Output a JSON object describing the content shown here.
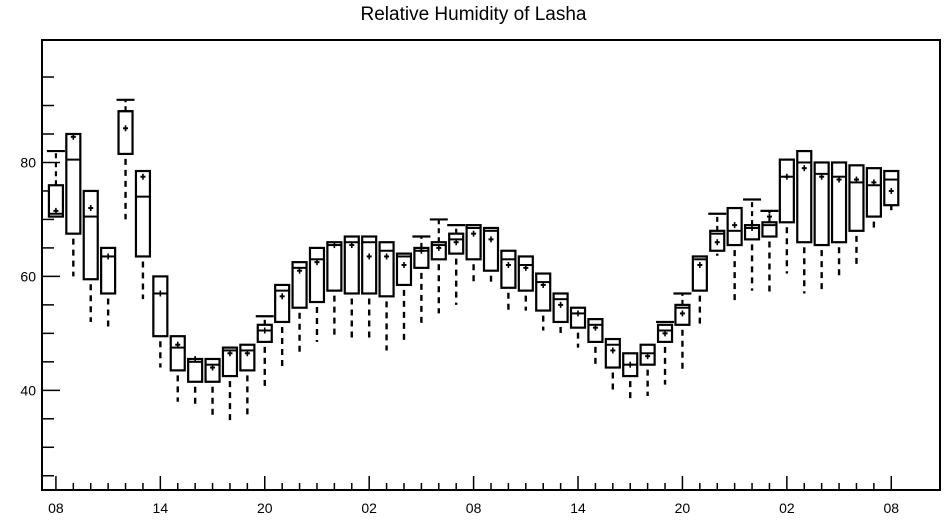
{
  "chart_data": {
    "type": "box",
    "title": "Relative Humidity of Lasha",
    "xlabel": "",
    "ylabel": "",
    "ylim": [
      22.5,
      101.5
    ],
    "yticks": [
      40,
      60,
      80
    ],
    "yticks_minor": [
      25,
      30,
      35,
      45,
      50,
      55,
      65,
      70,
      75,
      85,
      90,
      95
    ],
    "xlim": [
      -0.8,
      50.8
    ],
    "xticks": [
      {
        "x": 0,
        "label": "08"
      },
      {
        "x": 6,
        "label": "14"
      },
      {
        "x": 12,
        "label": "20"
      },
      {
        "x": 18,
        "label": "02"
      },
      {
        "x": 24,
        "label": "08"
      },
      {
        "x": 30,
        "label": "14"
      },
      {
        "x": 36,
        "label": "20"
      },
      {
        "x": 42,
        "label": "02"
      },
      {
        "x": 48,
        "label": "08"
      }
    ],
    "series": [
      {
        "values": [
          {
            "x": 0,
            "q1": 70.5,
            "median": 71,
            "q3": 76,
            "mean": 71.5,
            "whisker_low": null,
            "whisker_high": 82
          },
          {
            "x": 1,
            "q1": 67.5,
            "median": 80.5,
            "q3": 85,
            "mean": 84.5,
            "whisker_low": 60,
            "whisker_high": null
          },
          {
            "x": 2,
            "q1": 59.5,
            "median": 70.5,
            "q3": 75,
            "mean": 72,
            "whisker_low": 52,
            "whisker_high": null
          },
          {
            "x": 3,
            "q1": 57,
            "median": 63.5,
            "q3": 65,
            "mean": 63.5,
            "whisker_low": 50.5,
            "whisker_high": null
          },
          {
            "x": 4,
            "q1": 81.5,
            "median": 89,
            "q3": 89,
            "mean": 86,
            "whisker_low": 70,
            "whisker_high": 91
          },
          {
            "x": 5,
            "q1": 63.5,
            "median": 74,
            "q3": 78.5,
            "mean": 77.5,
            "whisker_low": 56,
            "whisker_high": null
          },
          {
            "x": 6,
            "q1": 49.5,
            "median": 57,
            "q3": 60,
            "mean": 57,
            "whisker_low": 44,
            "whisker_high": null
          },
          {
            "x": 7,
            "q1": 43.5,
            "median": 47.5,
            "q3": 49.5,
            "mean": 48,
            "whisker_low": 38,
            "whisker_high": null
          },
          {
            "x": 8,
            "q1": 41.5,
            "median": 45,
            "q3": 45.5,
            "mean": 45.5,
            "whisker_low": 37,
            "whisker_high": null
          },
          {
            "x": 9,
            "q1": 41.5,
            "median": 44.5,
            "q3": 45.5,
            "mean": 44,
            "whisker_low": 35.5,
            "whisker_high": null
          },
          {
            "x": 10,
            "q1": 42.5,
            "median": 47,
            "q3": 47.5,
            "mean": 46.5,
            "whisker_low": 34,
            "whisker_high": null
          },
          {
            "x": 11,
            "q1": 43.5,
            "median": 47,
            "q3": 48,
            "mean": 46.5,
            "whisker_low": 35.5,
            "whisker_high": null
          },
          {
            "x": 12,
            "q1": 48.5,
            "median": 50.5,
            "q3": 51.5,
            "mean": 50.5,
            "whisker_low": 40,
            "whisker_high": 53
          },
          {
            "x": 13,
            "q1": 52,
            "median": 57.5,
            "q3": 58.5,
            "mean": 56.5,
            "whisker_low": 43.5,
            "whisker_high": null
          },
          {
            "x": 14,
            "q1": 54.5,
            "median": 61.5,
            "q3": 62.5,
            "mean": 61,
            "whisker_low": 46.5,
            "whisker_high": null
          },
          {
            "x": 15,
            "q1": 55.5,
            "median": 63,
            "q3": 65,
            "mean": 62.5,
            "whisker_low": 48.5,
            "whisker_high": null
          },
          {
            "x": 16,
            "q1": 57.5,
            "median": 65.5,
            "q3": 66,
            "mean": 65.5,
            "whisker_low": 49.5,
            "whisker_high": null
          },
          {
            "x": 17,
            "q1": 57,
            "median": 66,
            "q3": 67,
            "mean": 65.5,
            "whisker_low": 48.5,
            "whisker_high": null
          },
          {
            "x": 18,
            "q1": 57,
            "median": 66,
            "q3": 67,
            "mean": 63.5,
            "whisker_low": 48.5,
            "whisker_high": null
          },
          {
            "x": 19,
            "q1": 56.5,
            "median": 64.5,
            "q3": 66,
            "mean": 63.5,
            "whisker_low": 47,
            "whisker_high": null
          },
          {
            "x": 20,
            "q1": 58.5,
            "median": 63.5,
            "q3": 64,
            "mean": 62,
            "whisker_low": 48.5,
            "whisker_high": null
          },
          {
            "x": 21,
            "q1": 61.5,
            "median": 64.5,
            "q3": 65,
            "mean": 64.5,
            "whisker_low": 51,
            "whisker_high": 67
          },
          {
            "x": 22,
            "q1": 63,
            "median": 65.5,
            "q3": 66,
            "mean": 65,
            "whisker_low": 53.5,
            "whisker_high": 70
          },
          {
            "x": 23,
            "q1": 64,
            "median": 66.5,
            "q3": 67.5,
            "mean": 66,
            "whisker_low": 55,
            "whisker_high": 69
          },
          {
            "x": 24,
            "q1": 63,
            "median": 68.5,
            "q3": 69,
            "mean": 67.5,
            "whisker_low": 58.5,
            "whisker_high": null
          },
          {
            "x": 25,
            "q1": 61,
            "median": 68,
            "q3": 68.5,
            "mean": 66.5,
            "whisker_low": 58.5,
            "whisker_high": null
          },
          {
            "x": 26,
            "q1": 58,
            "median": 63,
            "q3": 64.5,
            "mean": 62,
            "whisker_low": 54,
            "whisker_high": null
          },
          {
            "x": 27,
            "q1": 57.5,
            "median": 62,
            "q3": 63.5,
            "mean": 61.5,
            "whisker_low": 54,
            "whisker_high": null
          },
          {
            "x": 28,
            "q1": 54,
            "median": 59,
            "q3": 60.5,
            "mean": 58.5,
            "whisker_low": 50.5,
            "whisker_high": null
          },
          {
            "x": 29,
            "q1": 52,
            "median": 56,
            "q3": 57,
            "mean": 55,
            "whisker_low": 49.5,
            "whisker_high": null
          },
          {
            "x": 30,
            "q1": 51,
            "median": 53.5,
            "q3": 54.5,
            "mean": 53.5,
            "whisker_low": 47.5,
            "whisker_high": null
          },
          {
            "x": 31,
            "q1": 48.5,
            "median": 51.5,
            "q3": 52.5,
            "mean": 51,
            "whisker_low": 44.5,
            "whisker_high": null
          },
          {
            "x": 32,
            "q1": 44,
            "median": 48,
            "q3": 49,
            "mean": 47,
            "whisker_low": 40,
            "whisker_high": null
          },
          {
            "x": 33,
            "q1": 42.5,
            "median": 44.5,
            "q3": 46.5,
            "mean": 44.5,
            "whisker_low": 38,
            "whisker_high": null
          },
          {
            "x": 34,
            "q1": 44.5,
            "median": 46.5,
            "q3": 48,
            "mean": 46,
            "whisker_low": 39,
            "whisker_high": null
          },
          {
            "x": 35,
            "q1": 48.5,
            "median": 50.5,
            "q3": 51.5,
            "mean": 50,
            "whisker_low": 41,
            "whisker_high": 52
          },
          {
            "x": 36,
            "q1": 51.5,
            "median": 54.5,
            "q3": 55,
            "mean": 53.5,
            "whisker_low": 43,
            "whisker_high": 57
          },
          {
            "x": 37,
            "q1": 57.5,
            "median": 63,
            "q3": 63.5,
            "mean": 62,
            "whisker_low": 51.5,
            "whisker_high": null
          },
          {
            "x": 38,
            "q1": 64.5,
            "median": 67.5,
            "q3": 68,
            "mean": 66,
            "whisker_low": 64,
            "whisker_high": 71
          },
          {
            "x": 39,
            "q1": 65.5,
            "median": 68,
            "q3": 72,
            "mean": 69,
            "whisker_low": 55,
            "whisker_high": null
          },
          {
            "x": 40,
            "q1": 66.5,
            "median": 68.5,
            "q3": 69,
            "mean": 68.5,
            "whisker_low": 57.5,
            "whisker_high": 73.5
          },
          {
            "x": 41,
            "q1": 67,
            "median": 69,
            "q3": 69.5,
            "mean": 70.5,
            "whisker_low": 57,
            "whisker_high": 71.5
          },
          {
            "x": 42,
            "q1": 69.5,
            "median": 77.5,
            "q3": 80.5,
            "mean": 77.5,
            "whisker_low": 60.5,
            "whisker_high": null
          },
          {
            "x": 43,
            "q1": 66,
            "median": 80,
            "q3": 82,
            "mean": 79,
            "whisker_low": 57,
            "whisker_high": null
          },
          {
            "x": 44,
            "q1": 65.5,
            "median": 78,
            "q3": 80,
            "mean": 77.5,
            "whisker_low": 57,
            "whisker_high": null
          },
          {
            "x": 45,
            "q1": 66,
            "median": 77.5,
            "q3": 80,
            "mean": 77,
            "whisker_low": 59.5,
            "whisker_high": null
          },
          {
            "x": 46,
            "q1": 68,
            "median": 76.5,
            "q3": 79.5,
            "mean": 77,
            "whisker_low": 62,
            "whisker_high": null
          },
          {
            "x": 47,
            "q1": 70.5,
            "median": 76,
            "q3": 79,
            "mean": 76.5,
            "whisker_low": 68,
            "whisker_high": null
          },
          {
            "x": 48,
            "q1": 72.5,
            "median": 77,
            "q3": 78.5,
            "mean": 75,
            "whisker_low": 72.5,
            "whisker_high": null
          }
        ]
      }
    ]
  }
}
